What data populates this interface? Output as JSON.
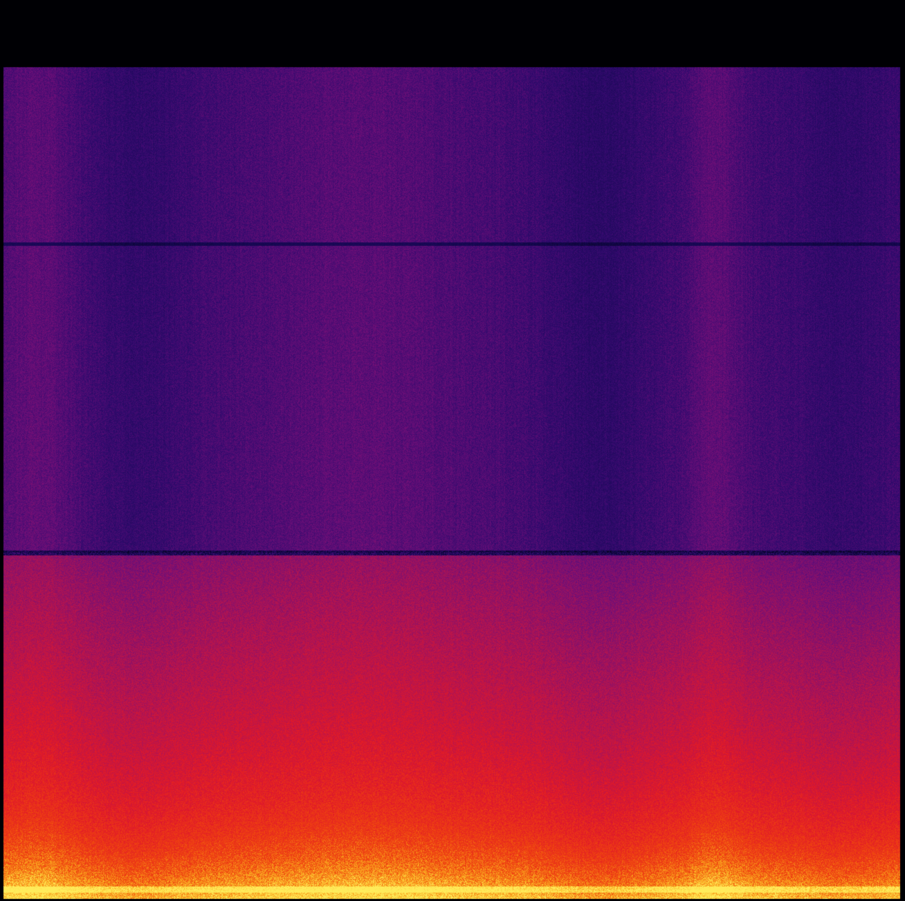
{
  "chart_data": {
    "type": "heatmap",
    "title": "",
    "xlabel": "",
    "ylabel": "",
    "colormap": "inferno-like",
    "colors": {
      "background": "#000000",
      "low": "#1a0550",
      "mid_low": "#3b0a6e",
      "mid": "#7a0f7a",
      "mid_high": "#c4103a",
      "high": "#e8200c",
      "peak": "#ffd43b"
    },
    "grid": false,
    "legend": "none",
    "description_bands": [
      {
        "name": "silent-top",
        "intensity": 0.0
      },
      {
        "name": "upper-band",
        "intensity": 0.35
      },
      {
        "name": "middle-band",
        "intensity": 0.38
      },
      {
        "name": "lower-band",
        "intensity": 0.62
      },
      {
        "name": "base-band",
        "intensity": 0.95
      }
    ]
  }
}
